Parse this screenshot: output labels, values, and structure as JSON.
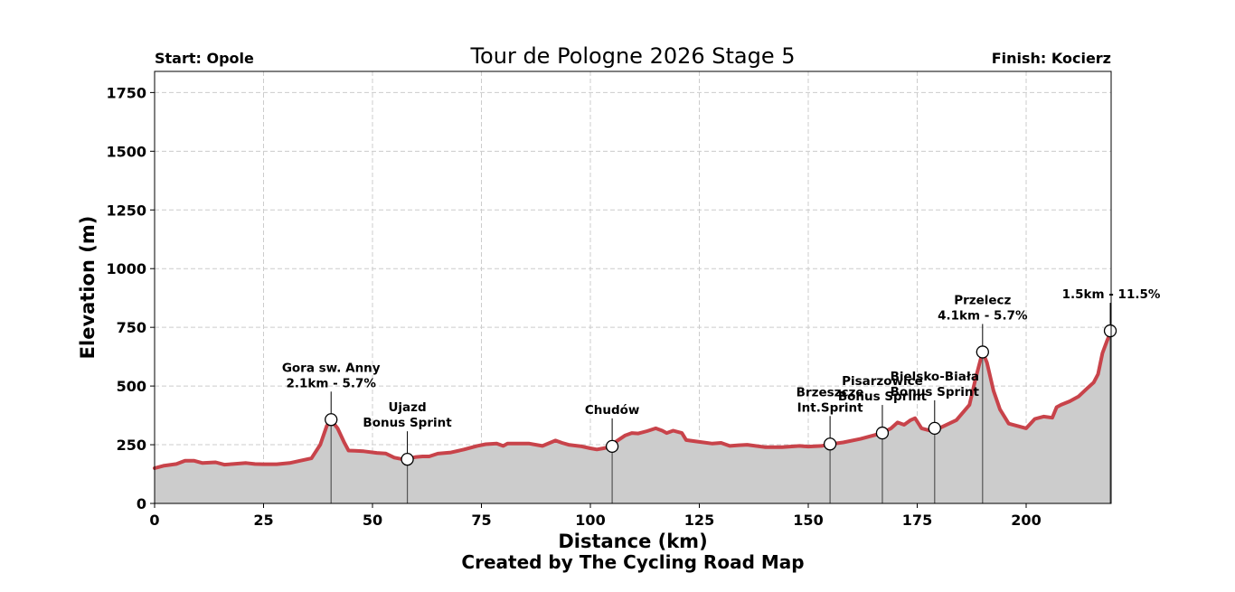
{
  "chart_data": {
    "type": "area",
    "title": "Tour de Pologne 2026 Stage 5",
    "start_label": "Start: Opole",
    "finish_label": "Finish: Kocierz",
    "xlabel": "Distance (km)",
    "ylabel": "Elevation (m)",
    "credit": "Created by The Cycling Road Map",
    "xlim": [
      0,
      219.5
    ],
    "ylim": [
      0,
      1840
    ],
    "xticks": [
      0,
      25,
      50,
      75,
      100,
      125,
      150,
      175,
      200
    ],
    "yticks": [
      0,
      250,
      500,
      750,
      1000,
      1250,
      1500,
      1750
    ],
    "grid": true,
    "line_color": "#c8434a",
    "fill_color": "#cccccc",
    "profile": {
      "x": [
        0,
        2,
        5,
        7,
        9,
        11,
        14,
        16,
        18,
        21,
        23,
        25,
        28,
        31,
        33,
        36,
        38,
        39.5,
        40.5,
        42,
        43.5,
        44.5,
        46,
        48,
        51,
        53,
        55,
        57,
        58,
        60,
        61.5,
        63,
        65,
        68,
        71,
        74,
        76,
        78.5,
        80,
        81,
        83,
        86,
        89,
        92,
        93.5,
        95,
        98,
        100,
        101.5,
        103,
        105,
        106,
        108,
        109.5,
        111,
        113,
        115,
        116.5,
        117.5,
        119,
        121,
        122,
        125,
        128,
        130,
        132,
        134,
        136,
        140,
        144,
        148,
        150,
        153,
        155,
        158,
        162,
        165,
        167,
        169,
        170.5,
        172,
        173.5,
        174.5,
        176,
        178,
        180,
        184,
        187,
        188.5,
        190,
        191,
        192.5,
        194,
        196,
        198,
        200,
        202,
        204,
        206,
        207,
        208,
        210,
        212,
        214,
        215.5,
        216.5,
        217.5,
        218.5,
        219.5
      ],
      "y": [
        150,
        160,
        168,
        182,
        182,
        172,
        175,
        165,
        168,
        172,
        168,
        167,
        167,
        172,
        180,
        192,
        250,
        330,
        355,
        320,
        260,
        225,
        224,
        222,
        215,
        213,
        195,
        188,
        190,
        198,
        200,
        200,
        212,
        217,
        230,
        245,
        252,
        255,
        245,
        255,
        255,
        255,
        245,
        268,
        258,
        250,
        243,
        235,
        230,
        235,
        243,
        265,
        290,
        300,
        298,
        308,
        320,
        310,
        300,
        310,
        300,
        270,
        262,
        255,
        258,
        245,
        248,
        250,
        240,
        240,
        245,
        242,
        245,
        252,
        260,
        275,
        290,
        300,
        320,
        345,
        335,
        355,
        363,
        320,
        310,
        320,
        355,
        420,
        540,
        645,
        600,
        480,
        400,
        340,
        330,
        320,
        360,
        370,
        365,
        410,
        420,
        435,
        455,
        490,
        515,
        550,
        640,
        690,
        735
      ]
    },
    "annotations": [
      {
        "x": 40.5,
        "y": 357,
        "lines": [
          "Gora sw. Anny",
          "2.1km - 5.7%"
        ]
      },
      {
        "x": 58,
        "y": 188,
        "lines": [
          "Ujazd",
          "Bonus Sprint"
        ]
      },
      {
        "x": 105,
        "y": 243,
        "lines": [
          "Chudów"
        ]
      },
      {
        "x": 155,
        "y": 253,
        "lines": [
          "Brzeszcze",
          "Int.Sprint"
        ]
      },
      {
        "x": 167,
        "y": 300,
        "lines": [
          "Pisarzowice",
          "Bonus Sprint"
        ]
      },
      {
        "x": 179,
        "y": 320,
        "lines": [
          "Bielsko-Biała",
          "Bonus Sprint"
        ]
      },
      {
        "x": 190,
        "y": 645,
        "lines": [
          "Przelecz",
          "4.1km - 5.7%"
        ]
      },
      {
        "x": 219.3,
        "y": 735,
        "lines": [
          "1.5km - 11.5%"
        ]
      }
    ]
  }
}
